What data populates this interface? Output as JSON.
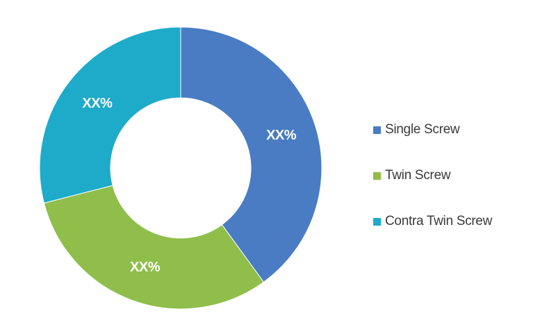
{
  "chart_data": {
    "type": "pie",
    "donut": true,
    "categories": [
      "Single Screw",
      "Twin Screw",
      "Contra Twin Screw"
    ],
    "values": [
      40,
      31,
      29
    ],
    "data_labels": [
      "XX%",
      "XX%",
      "XX%"
    ],
    "colors": [
      "#4a7cc4",
      "#8fbe4b",
      "#1eabc9"
    ],
    "legend": {
      "position": "right"
    }
  }
}
